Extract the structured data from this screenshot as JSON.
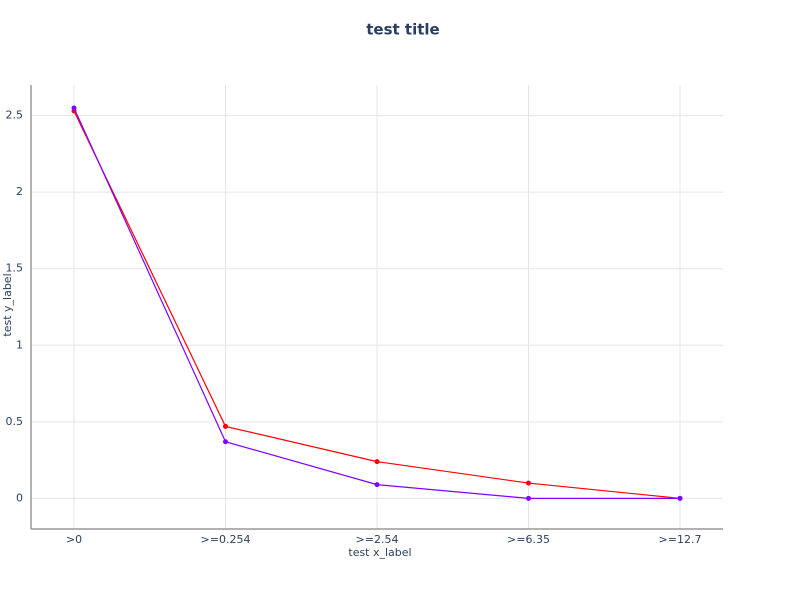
{
  "chart_data": {
    "type": "line",
    "title": "test title",
    "x_label": "test x_label",
    "y_label": "test y_label",
    "categories": [
      ">0",
      ">=0.254",
      ">=2.54",
      ">=6.35",
      ">=12.7"
    ],
    "series": [
      {
        "color": "#ff0000",
        "values": [
          2.53,
          0.47,
          0.24,
          0.1,
          0
        ]
      },
      {
        "color": "#8000ff",
        "values": [
          2.55,
          0.37,
          0.09,
          0,
          0
        ]
      }
    ],
    "ylim": [
      -0.2,
      2.7
    ],
    "yticks": [
      0,
      0.5,
      1,
      1.5,
      2,
      2.5
    ],
    "grid": true
  }
}
